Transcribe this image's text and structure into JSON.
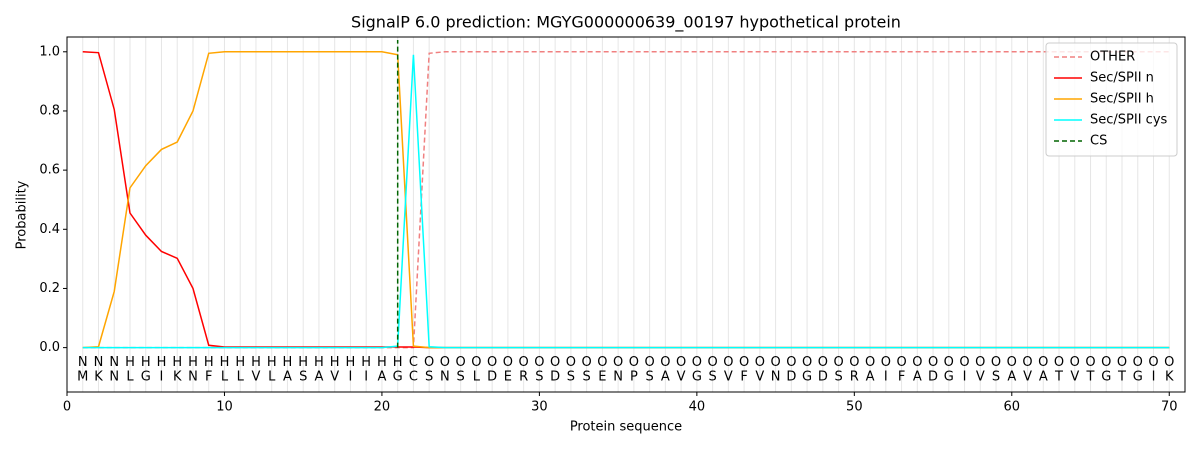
{
  "chart_data": {
    "type": "line",
    "title": "SignalP 6.0 prediction: MGYG000000639_00197 hypothetical protein",
    "xlabel": "Protein sequence",
    "ylabel": "Probability",
    "xlim": [
      0,
      71
    ],
    "ylim": [
      -0.15,
      1.05
    ],
    "xticks": [
      0,
      10,
      20,
      30,
      40,
      50,
      60,
      70
    ],
    "yticks": [
      {
        "value": 0,
        "label": "0.0"
      },
      0.2,
      0.4,
      0.6,
      0.8,
      {
        "value": 1,
        "label": "1.0"
      }
    ],
    "legend": "upper right",
    "x": [
      1,
      2,
      3,
      4,
      5,
      6,
      7,
      8,
      9,
      10,
      11,
      12,
      13,
      14,
      15,
      16,
      17,
      18,
      19,
      20,
      21,
      22,
      23,
      24,
      25,
      26,
      27,
      28,
      29,
      30,
      31,
      32,
      33,
      34,
      35,
      36,
      37,
      38,
      39,
      40,
      41,
      42,
      43,
      44,
      45,
      46,
      47,
      48,
      49,
      50,
      51,
      52,
      53,
      54,
      55,
      56,
      57,
      58,
      59,
      60,
      61,
      62,
      63,
      64,
      65,
      66,
      67,
      68,
      69,
      70
    ],
    "sequence": [
      "M",
      "K",
      "N",
      "L",
      "G",
      "I",
      "K",
      "N",
      "F",
      "L",
      "L",
      "V",
      "L",
      "A",
      "S",
      "A",
      "V",
      "I",
      "I",
      "A",
      "G",
      "C",
      "S",
      "N",
      "S",
      "L",
      "D",
      "E",
      "R",
      "S",
      "D",
      "S",
      "S",
      "E",
      "N",
      "P",
      "S",
      "A",
      "V",
      "G",
      "S",
      "V",
      "F",
      "V",
      "N",
      "D",
      "G",
      "D",
      "S",
      "R",
      "A",
      "I",
      "F",
      "A",
      "D",
      "G",
      "I",
      "V",
      "S",
      "A",
      "V",
      "A",
      "T",
      "V",
      "T",
      "G",
      "T",
      "G",
      "I",
      "K"
    ],
    "labels": [
      "N",
      "N",
      "N",
      "H",
      "H",
      "H",
      "H",
      "H",
      "H",
      "H",
      "H",
      "H",
      "H",
      "H",
      "H",
      "H",
      "H",
      "H",
      "H",
      "H",
      "H",
      "C",
      "O",
      "O",
      "O",
      "O",
      "O",
      "O",
      "O",
      "O",
      "O",
      "O",
      "O",
      "O",
      "O",
      "O",
      "O",
      "O",
      "O",
      "O",
      "O",
      "O",
      "O",
      "O",
      "O",
      "O",
      "O",
      "O",
      "O",
      "O",
      "O",
      "O",
      "O",
      "O",
      "O",
      "O",
      "O",
      "O",
      "O",
      "O",
      "O",
      "O",
      "O",
      "O",
      "O",
      "O",
      "O",
      "O",
      "O",
      "O"
    ],
    "label_colors": {
      "N": "#ff0000",
      "H": "#ffa500",
      "C": "#00ffff",
      "O": "#808080"
    },
    "series": [
      {
        "name": "OTHER",
        "color": "#f08080",
        "dash": true,
        "values": [
          0,
          0,
          0,
          0,
          0,
          0,
          0,
          0,
          0,
          0,
          0,
          0,
          0,
          0,
          0,
          0,
          0,
          0,
          0,
          0,
          0,
          0,
          0.995,
          1,
          1,
          1,
          1,
          1,
          1,
          1,
          1,
          1,
          1,
          1,
          1,
          1,
          1,
          1,
          1,
          1,
          1,
          1,
          1,
          1,
          1,
          1,
          1,
          1,
          1,
          1,
          1,
          1,
          1,
          1,
          1,
          1,
          1,
          1,
          1,
          1,
          1,
          1,
          1,
          1,
          1,
          1,
          1,
          1,
          1,
          1
        ]
      },
      {
        "name": "Sec/SPII n",
        "color": "#ff0000",
        "dash": false,
        "values": [
          1,
          0.997,
          0.805,
          0.455,
          0.38,
          0.325,
          0.302,
          0.2,
          0.008,
          0.002,
          0.002,
          0.002,
          0.002,
          0.002,
          0.002,
          0.002,
          0.002,
          0.002,
          0.002,
          0.002,
          0.002,
          0.002,
          0,
          0,
          0,
          0,
          0,
          0,
          0,
          0,
          0,
          0,
          0,
          0,
          0,
          0,
          0,
          0,
          0,
          0,
          0,
          0,
          0,
          0,
          0,
          0,
          0,
          0,
          0,
          0,
          0,
          0,
          0,
          0,
          0,
          0,
          0,
          0,
          0,
          0,
          0,
          0,
          0,
          0,
          0,
          0,
          0,
          0,
          0,
          0
        ]
      },
      {
        "name": "Sec/SPII h",
        "color": "#ffa500",
        "dash": false,
        "values": [
          0,
          0.003,
          0.19,
          0.54,
          0.615,
          0.67,
          0.695,
          0.8,
          0.995,
          1,
          1,
          1,
          1,
          1,
          1,
          1,
          1,
          1,
          1,
          1,
          0.99,
          0.005,
          0,
          0,
          0,
          0,
          0,
          0,
          0,
          0,
          0,
          0,
          0,
          0,
          0,
          0,
          0,
          0,
          0,
          0,
          0,
          0,
          0,
          0,
          0,
          0,
          0,
          0,
          0,
          0,
          0,
          0,
          0,
          0,
          0,
          0,
          0,
          0,
          0,
          0,
          0,
          0,
          0,
          0,
          0,
          0,
          0,
          0,
          0,
          0
        ]
      },
      {
        "name": "Sec/SPII cys",
        "color": "#00ffff",
        "dash": false,
        "values": [
          0,
          0,
          0,
          0,
          0,
          0,
          0,
          0,
          0,
          0,
          0,
          0,
          0,
          0,
          0,
          0,
          0,
          0,
          0,
          0,
          0.005,
          0.99,
          0.003,
          0,
          0,
          0,
          0,
          0,
          0,
          0,
          0,
          0,
          0,
          0,
          0,
          0,
          0,
          0,
          0,
          0,
          0,
          0,
          0,
          0,
          0,
          0,
          0,
          0,
          0,
          0,
          0,
          0,
          0,
          0,
          0,
          0,
          0,
          0,
          0,
          0,
          0,
          0,
          0,
          0,
          0,
          0,
          0,
          0,
          0,
          0
        ]
      }
    ],
    "cleavage_site": {
      "name": "CS",
      "color": "#006400",
      "x": 21
    }
  }
}
